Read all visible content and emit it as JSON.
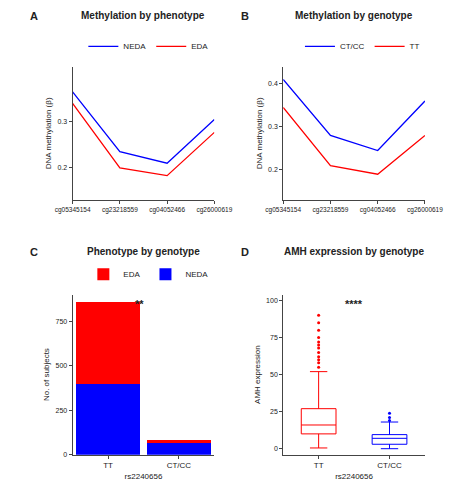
{
  "chart_data": [
    {
      "label": "A",
      "type": "line",
      "title": "Methylation by phenotype",
      "y_label": "DNA methylation (β)",
      "categories": [
        "cg05345154",
        "cg23218559",
        "cg04052466",
        "cg26000619"
      ],
      "series": [
        {
          "name": "NEDA",
          "color": "#0000ff",
          "values": [
            0.365,
            0.235,
            0.21,
            0.305
          ]
        },
        {
          "name": "EDA",
          "color": "#ff0000",
          "values": [
            0.34,
            0.2,
            0.183,
            0.277
          ]
        }
      ],
      "ylim": [
        0.13,
        0.42
      ],
      "yticks": [
        0.2,
        0.3
      ],
      "legend": "top right",
      "grid": false
    },
    {
      "label": "B",
      "type": "line",
      "title": "Methylation by genotype",
      "y_label": "DNA methylation (β)",
      "categories": [
        "cg05345154",
        "cg23218559",
        "cg04052466",
        "cg26000619"
      ],
      "series": [
        {
          "name": "CT/CC",
          "color": "#0000ff",
          "values": [
            0.41,
            0.28,
            0.245,
            0.36
          ]
        },
        {
          "name": "TT",
          "color": "#ff0000",
          "values": [
            0.345,
            0.21,
            0.19,
            0.28
          ]
        }
      ],
      "ylim": [
        0.13,
        0.44
      ],
      "yticks": [
        0.2,
        0.3,
        0.4
      ],
      "legend": "top right",
      "grid": false
    },
    {
      "label": "C",
      "type": "bar",
      "title": "Phenotype by genotype",
      "x_label": "rs2240656",
      "y_label": "No. of subjects",
      "categories": [
        "TT",
        "CT/CC"
      ],
      "series": [
        {
          "name": "NEDA",
          "color": "#0000ff",
          "values": [
            395,
            65
          ]
        },
        {
          "name": "EDA",
          "color": "#ff0000",
          "values": [
            465,
            18
          ]
        }
      ],
      "stacked": true,
      "ylim": [
        0,
        900
      ],
      "yticks": [
        0,
        250,
        500,
        750
      ],
      "annotation": "**",
      "legend": "top right",
      "grid": false
    },
    {
      "label": "D",
      "type": "box",
      "title": "AMH expression by genotype",
      "x_label": "rs2240656",
      "y_label": "AMH expression",
      "categories": [
        "TT",
        "CT/CC"
      ],
      "colors": [
        "#ff0000",
        "#0000ff"
      ],
      "boxes": [
        {
          "q1": 10,
          "median": 16,
          "q3": 27,
          "lower": 0.5,
          "upper": 52,
          "outliers": [
            55,
            58,
            60,
            62,
            65,
            68,
            70,
            72,
            75,
            80,
            85,
            90
          ]
        },
        {
          "q1": 3,
          "median": 7,
          "q3": 9.5,
          "lower": 0,
          "upper": 18,
          "outliers": [
            19,
            21,
            24
          ]
        }
      ],
      "ylim": [
        -4,
        104
      ],
      "yticks": [
        0,
        25,
        50,
        75,
        100
      ],
      "annotation": "****",
      "grid": false
    }
  ]
}
